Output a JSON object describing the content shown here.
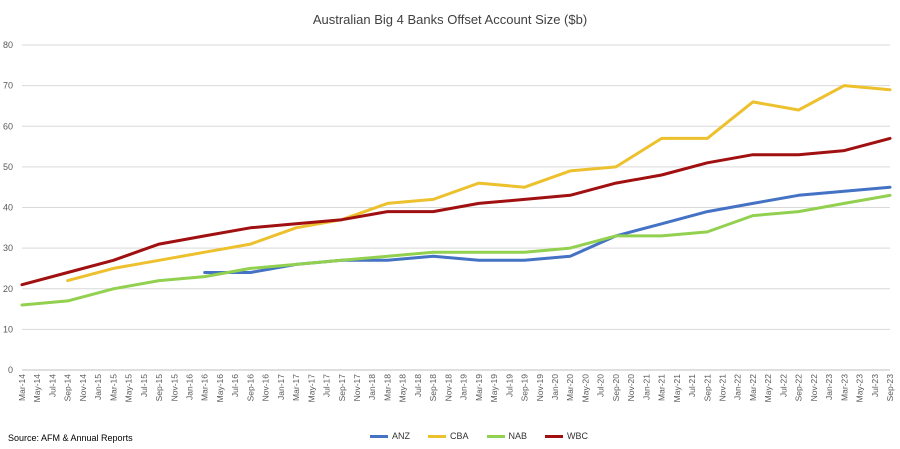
{
  "source_note": "Source: AFM & Annual Reports",
  "colors": {
    "ANZ": "#4472C4",
    "CBA": "#EDC02E",
    "NAB": "#92D050",
    "WBC": "#A01010",
    "grid": "#d9d9d9",
    "axis_text": "#595959"
  },
  "chart_data": {
    "type": "line",
    "title": "Australian Big 4 Banks Offset Account Size ($b)",
    "xlabel": "",
    "ylabel": "",
    "ylim": [
      0,
      80
    ],
    "yticks": [
      0,
      10,
      20,
      30,
      40,
      50,
      60,
      70,
      80
    ],
    "grid": true,
    "legend": "bottom",
    "categories": [
      "Mar-14",
      "May-14",
      "Jul-14",
      "Sep-14",
      "Nov-14",
      "Jan-15",
      "Mar-15",
      "May-15",
      "Jul-15",
      "Sep-15",
      "Nov-15",
      "Jan-16",
      "Mar-16",
      "May-16",
      "Jul-16",
      "Sep-16",
      "Nov-16",
      "Jan-17",
      "Mar-17",
      "May-17",
      "Jul-17",
      "Sep-17",
      "Nov-17",
      "Jan-18",
      "Mar-18",
      "May-18",
      "Jul-18",
      "Sep-18",
      "Nov-18",
      "Jan-19",
      "Mar-19",
      "May-19",
      "Jul-19",
      "Sep-19",
      "Nov-19",
      "Jan-20",
      "Mar-20",
      "May-20",
      "Jul-20",
      "Sep-20",
      "Nov-20",
      "Jan-21",
      "Mar-21",
      "May-21",
      "Jul-21",
      "Sep-21",
      "Nov-21",
      "Jan-22",
      "Mar-22",
      "May-22",
      "Jul-22",
      "Sep-22",
      "Nov-22",
      "Jan-23",
      "Mar-23",
      "May-23",
      "Jul-23",
      "Sep-23"
    ],
    "series": [
      {
        "name": "ANZ",
        "points": [
          [
            "Mar-16",
            24
          ],
          [
            "Sep-16",
            24
          ],
          [
            "Mar-17",
            26
          ],
          [
            "Sep-17",
            27
          ],
          [
            "Mar-18",
            27
          ],
          [
            "Sep-18",
            28
          ],
          [
            "Mar-19",
            27
          ],
          [
            "Sep-19",
            27
          ],
          [
            "Mar-20",
            28
          ],
          [
            "Sep-20",
            33
          ],
          [
            "Mar-21",
            36
          ],
          [
            "Sep-21",
            39
          ],
          [
            "Mar-22",
            41
          ],
          [
            "Sep-22",
            43
          ],
          [
            "Mar-23",
            44
          ],
          [
            "Sep-23",
            45
          ]
        ]
      },
      {
        "name": "CBA",
        "points": [
          [
            "Sep-14",
            22
          ],
          [
            "Mar-15",
            25
          ],
          [
            "Sep-15",
            27
          ],
          [
            "Mar-16",
            29
          ],
          [
            "Sep-16",
            31
          ],
          [
            "Mar-17",
            35
          ],
          [
            "Sep-17",
            37
          ],
          [
            "Mar-18",
            41
          ],
          [
            "Sep-18",
            42
          ],
          [
            "Mar-19",
            46
          ],
          [
            "Sep-19",
            45
          ],
          [
            "Mar-20",
            49
          ],
          [
            "Sep-20",
            50
          ],
          [
            "Mar-21",
            57
          ],
          [
            "Sep-21",
            57
          ],
          [
            "Mar-22",
            66
          ],
          [
            "Sep-22",
            64
          ],
          [
            "Mar-23",
            70
          ],
          [
            "Sep-23",
            69
          ]
        ]
      },
      {
        "name": "NAB",
        "points": [
          [
            "Mar-14",
            16
          ],
          [
            "Sep-14",
            17
          ],
          [
            "Mar-15",
            20
          ],
          [
            "Sep-15",
            22
          ],
          [
            "Mar-16",
            23
          ],
          [
            "Sep-16",
            25
          ],
          [
            "Mar-17",
            26
          ],
          [
            "Sep-17",
            27
          ],
          [
            "Mar-18",
            28
          ],
          [
            "Sep-18",
            29
          ],
          [
            "Mar-19",
            29
          ],
          [
            "Sep-19",
            29
          ],
          [
            "Mar-20",
            30
          ],
          [
            "Sep-20",
            33
          ],
          [
            "Mar-21",
            33
          ],
          [
            "Sep-21",
            34
          ],
          [
            "Mar-22",
            38
          ],
          [
            "Sep-22",
            39
          ],
          [
            "Mar-23",
            41
          ],
          [
            "Sep-23",
            43
          ]
        ]
      },
      {
        "name": "WBC",
        "points": [
          [
            "Mar-14",
            21
          ],
          [
            "Sep-14",
            24
          ],
          [
            "Mar-15",
            27
          ],
          [
            "Sep-15",
            31
          ],
          [
            "Mar-16",
            33
          ],
          [
            "Sep-16",
            35
          ],
          [
            "Mar-17",
            36
          ],
          [
            "Sep-17",
            37
          ],
          [
            "Mar-18",
            39
          ],
          [
            "Sep-18",
            39
          ],
          [
            "Mar-19",
            41
          ],
          [
            "Sep-19",
            42
          ],
          [
            "Mar-20",
            43
          ],
          [
            "Sep-20",
            46
          ],
          [
            "Mar-21",
            48
          ],
          [
            "Sep-21",
            51
          ],
          [
            "Mar-22",
            53
          ],
          [
            "Sep-22",
            53
          ],
          [
            "Mar-23",
            54
          ],
          [
            "Sep-23",
            57
          ]
        ]
      }
    ]
  }
}
